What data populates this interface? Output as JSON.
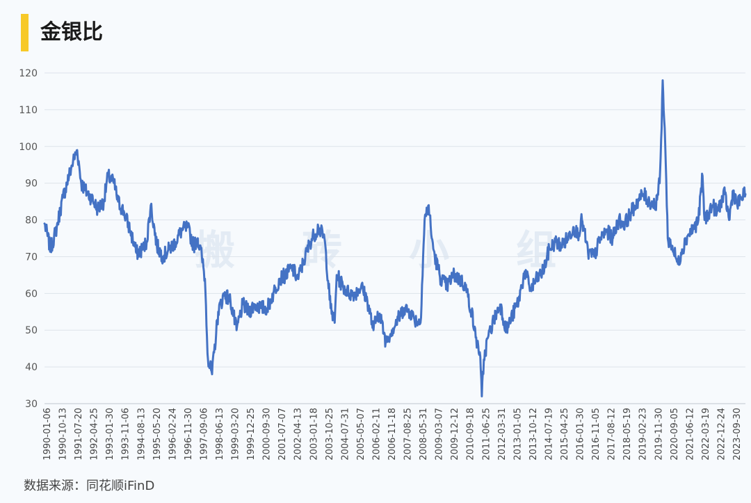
{
  "title": "金银比",
  "watermark": [
    "搬",
    "砖",
    "小",
    "组"
  ],
  "source": "数据来源：同花顺iFinD",
  "colors": {
    "accent": "#f7c928",
    "line": "#4472c4",
    "grid": "#dde3ea"
  },
  "chart_data": {
    "type": "line",
    "title": "金银比",
    "xlabel": "",
    "ylabel": "",
    "ylim": [
      30,
      120
    ],
    "y_ticks": [
      30,
      40,
      50,
      60,
      70,
      80,
      90,
      100,
      110,
      120
    ],
    "x_tick_labels": [
      "1990-01-06",
      "1990-10-13",
      "1991-07-20",
      "1992-04-25",
      "1993-01-30",
      "1993-11-06",
      "1994-08-13",
      "1995-05-20",
      "1996-02-24",
      "1996-11-30",
      "1997-09-06",
      "1998-06-13",
      "1999-03-20",
      "1999-12-25",
      "2000-09-30",
      "2001-07-07",
      "2002-04-13",
      "2003-01-18",
      "2003-10-25",
      "2004-07-31",
      "2005-05-07",
      "2006-02-11",
      "2006-11-18",
      "2007-08-25",
      "2008-05-31",
      "2009-03-07",
      "2009-12-12",
      "2010-09-18",
      "2011-06-25",
      "2012-03-31",
      "2013-01-05",
      "2013-10-12",
      "2014-07-19",
      "2015-04-25",
      "2016-01-30",
      "2016-11-05",
      "2017-08-12",
      "2018-05-19",
      "2019-02-23",
      "2019-11-30",
      "2020-09-05",
      "2021-06-12",
      "2022-03-19",
      "2022-12-24",
      "2023-09-30"
    ],
    "grid": "horizontal",
    "legend": "none",
    "series": [
      {
        "x": [
          1990.0,
          1990.3,
          1990.6,
          1990.9,
          1991.2,
          1991.4,
          1991.6,
          1991.8,
          1992.0,
          1992.3,
          1992.6,
          1992.9,
          1993.1,
          1993.4,
          1993.6,
          1993.9,
          1994.2,
          1994.5,
          1994.8,
          1995.0,
          1995.2,
          1995.5,
          1995.8,
          1996.1,
          1996.4,
          1996.7,
          1997.0,
          1997.3,
          1997.5,
          1997.7,
          1997.85,
          1998.0,
          1998.2,
          1998.5,
          1998.8,
          1999.1,
          1999.4,
          1999.7,
          2000.0,
          2000.3,
          2000.6,
          2000.9,
          2001.2,
          2001.5,
          2001.8,
          2002.1,
          2002.4,
          2002.7,
          2003.0,
          2003.2,
          2003.4,
          2003.7,
          2004.0,
          2004.2,
          2004.3,
          2004.6,
          2004.9,
          2005.2,
          2005.5,
          2005.8,
          2006.1,
          2006.3,
          2006.5,
          2006.7,
          2007.0,
          2007.3,
          2007.6,
          2007.9,
          2008.1,
          2008.4,
          2008.6,
          2008.8,
          2008.95,
          2009.1,
          2009.4,
          2009.7,
          2010.0,
          2010.3,
          2010.6,
          2010.9,
          2011.1,
          2011.3,
          2011.4,
          2011.5,
          2011.7,
          2012.0,
          2012.3,
          2012.6,
          2012.9,
          2013.2,
          2013.5,
          2013.8,
          2014.1,
          2014.4,
          2014.7,
          2015.0,
          2015.3,
          2015.6,
          2015.9,
          2016.1,
          2016.3,
          2016.6,
          2016.9,
          2017.2,
          2017.5,
          2017.8,
          2018.1,
          2018.4,
          2018.7,
          2019.0,
          2019.3,
          2019.6,
          2019.9,
          2020.1,
          2020.2,
          2020.25,
          2020.35,
          2020.5,
          2020.7,
          2021.0,
          2021.2,
          2021.5,
          2021.8,
          2022.0,
          2022.2,
          2022.3,
          2022.5,
          2022.7,
          2022.9,
          2023.1,
          2023.3,
          2023.5,
          2023.7,
          2023.9,
          2024.1,
          2024.3
        ],
        "y": [
          79,
          72,
          78,
          86,
          92,
          96,
          99,
          90,
          88,
          86,
          83,
          85,
          92,
          90,
          85,
          82,
          77,
          71,
          72,
          74,
          84,
          73,
          70,
          72,
          74,
          77,
          78,
          73,
          75,
          70,
          64,
          42,
          38,
          55,
          60,
          58,
          50,
          57,
          55,
          57,
          56,
          56,
          60,
          64,
          65,
          67,
          64,
          69,
          74,
          76,
          78,
          75,
          56,
          52,
          65,
          62,
          60,
          60,
          62,
          58,
          50,
          55,
          52,
          47,
          50,
          53,
          56,
          55,
          53,
          52,
          80,
          84,
          75,
          70,
          64,
          62,
          65,
          64,
          62,
          55,
          48,
          44,
          32,
          42,
          48,
          53,
          57,
          50,
          54,
          58,
          66,
          61,
          64,
          66,
          72,
          74,
          73,
          75,
          78,
          76,
          80,
          71,
          70,
          75,
          77,
          75,
          80,
          79,
          82,
          85,
          87,
          85,
          84,
          90,
          105,
          118,
          105,
          75,
          73,
          68,
          72,
          76,
          78,
          80,
          92,
          80,
          82,
          84,
          82,
          85,
          87,
          80,
          88,
          84,
          86,
          87
        ]
      }
    ]
  }
}
